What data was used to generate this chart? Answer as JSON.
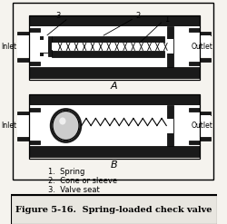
{
  "title": "Figure 5-16.  Spring-loaded check valve",
  "background_color": "#f5f3ee",
  "border_color": "#000000",
  "white": "#ffffff",
  "black": "#000000",
  "dark": "#1a1a1a",
  "med_gray": "#888888",
  "light_gray": "#cccccc",
  "fig_width": 2.5,
  "fig_height": 2.47,
  "dpi": 100,
  "label_A": "A",
  "label_B": "B",
  "label_inlet": "Inlet",
  "label_outlet": "Outlet",
  "legend_1": "1.  Spring",
  "legend_2": "2.  Cone or sleeve",
  "legend_3": "3.  Valve seat",
  "caption": "Figure 5-16.  Spring-loaded check valve"
}
